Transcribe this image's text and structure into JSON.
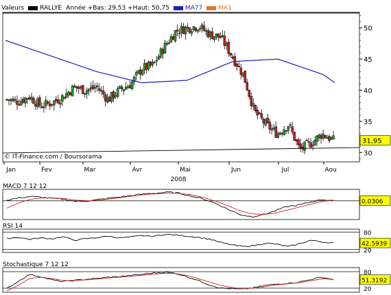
{
  "header": {
    "label_valeurs": "Valeurs",
    "label_symbol": "RALLYE",
    "label_range": "Année +Bas: 29,53 +Haut: 50,75",
    "ma77_label": "MA77",
    "ma1_label": "MA1",
    "ma77_color": "#1f1fbf",
    "ma1_color": "#e07a2a",
    "symbol_swatch_color": "#000000"
  },
  "watermark": "© IT-Finance.com / Boursorama",
  "chart_data": [
    {
      "type": "candlestick",
      "title": "",
      "xlabel": "2008",
      "x_tick_labels": [
        "Jan",
        "Fev",
        "Mar",
        "Avr",
        "Mai",
        "Jun",
        "Jul",
        "Aou"
      ],
      "y_ticks": [
        30,
        35,
        40,
        45,
        50
      ],
      "ylim": [
        28.5,
        52.5
      ],
      "last_value_label": "31,95",
      "grid": false,
      "candle_colors": {
        "up": "#2e9b2e",
        "down": "#c0202a"
      },
      "close_by_week": [
        {
          "week": "Jan-1",
          "close": 38.5
        },
        {
          "week": "Jan-2",
          "close": 38.2
        },
        {
          "week": "Jan-3",
          "close": 39.0
        },
        {
          "week": "Jan-4",
          "close": 37.5
        },
        {
          "week": "Fev-1",
          "close": 38.0
        },
        {
          "week": "Fev-2",
          "close": 39.0
        },
        {
          "week": "Fev-3",
          "close": 40.5
        },
        {
          "week": "Fev-4",
          "close": 40.0
        },
        {
          "week": "Mar-1",
          "close": 40.5
        },
        {
          "week": "Mar-2",
          "close": 38.5
        },
        {
          "week": "Mar-3",
          "close": 40.0
        },
        {
          "week": "Mar-4",
          "close": 41.0
        },
        {
          "week": "Avr-1",
          "close": 43.5
        },
        {
          "week": "Avr-2",
          "close": 44.0
        },
        {
          "week": "Avr-3",
          "close": 47.0
        },
        {
          "week": "Avr-4",
          "close": 49.5
        },
        {
          "week": "Mai-1",
          "close": 50.0
        },
        {
          "week": "Mai-2",
          "close": 50.3
        },
        {
          "week": "Mai-3",
          "close": 49.0
        },
        {
          "week": "Mai-4",
          "close": 48.5
        },
        {
          "week": "Jun-1",
          "close": 45.5
        },
        {
          "week": "Jun-2",
          "close": 42.5
        },
        {
          "week": "Jun-3",
          "close": 36.5
        },
        {
          "week": "Jun-4",
          "close": 34.5
        },
        {
          "week": "Jul-1",
          "close": 33.0
        },
        {
          "week": "Jul-2",
          "close": 34.5
        },
        {
          "week": "Jul-3",
          "close": 30.5
        },
        {
          "week": "Jul-4",
          "close": 31.5
        },
        {
          "week": "Aou-1",
          "close": 33.0
        },
        {
          "week": "Aou-2",
          "close": 31.95
        }
      ],
      "ma77": [
        {
          "week": "Jan-1",
          "value": 48.0
        },
        {
          "week": "Fev-1",
          "value": 45.5
        },
        {
          "week": "Mar-1",
          "value": 43.0
        },
        {
          "week": "Avr-1",
          "value": 41.2
        },
        {
          "week": "Mai-1",
          "value": 41.6
        },
        {
          "week": "Jun-1",
          "value": 44.6
        },
        {
          "week": "Jul-1",
          "value": 45.0
        },
        {
          "week": "Aou-1",
          "value": 42.5
        },
        {
          "week": "Aou-2",
          "value": 41.2
        }
      ],
      "ma1": [
        {
          "week": "Jul-1",
          "value": 30.6
        },
        {
          "week": "Aou-2",
          "value": 30.8
        }
      ]
    },
    {
      "type": "line",
      "title": "MACD 7 12 12",
      "last_value_label": "0,0306",
      "series": [
        {
          "color": "#000000",
          "values": [
            0.1,
            0.4,
            0.6,
            0.5,
            0.3,
            0.2,
            -0.1,
            0.0,
            0.2,
            0.4,
            0.6,
            0.8,
            1.0,
            1.1,
            1.2,
            1.0,
            0.6,
            0.2,
            -0.4,
            -1.2,
            -1.9,
            -2.2,
            -1.9,
            -1.4,
            -0.8,
            -0.6,
            -0.2,
            0.2,
            0.03
          ]
        },
        {
          "color": "#cc2222",
          "values": [
            -1.0,
            -0.3,
            0.2,
            0.4,
            0.4,
            0.3,
            0.1,
            0.0,
            0.1,
            0.3,
            0.5,
            0.7,
            0.9,
            1.0,
            1.1,
            1.0,
            0.8,
            0.4,
            -0.1,
            -0.7,
            -1.4,
            -1.8,
            -1.9,
            -1.7,
            -1.3,
            -0.9,
            -0.5,
            -0.1,
            0.1
          ]
        }
      ]
    },
    {
      "type": "line",
      "title": "RSI 14",
      "y_ticks": [
        20,
        80
      ],
      "last_value_label": "42,5939",
      "series": [
        {
          "color": "#000000",
          "values": [
            58,
            62,
            55,
            60,
            57,
            64,
            52,
            57,
            61,
            66,
            60,
            63,
            68,
            65,
            72,
            70,
            66,
            62,
            56,
            44,
            36,
            30,
            34,
            42,
            38,
            30,
            40,
            52,
            46,
            42.6
          ]
        }
      ]
    },
    {
      "type": "line",
      "title": "Stochastique 7 12 12",
      "y_ticks": [
        20,
        80
      ],
      "last_value_label": "51,3192",
      "series": [
        {
          "color": "#000000",
          "values": [
            18,
            45,
            70,
            62,
            50,
            44,
            48,
            52,
            55,
            60,
            62,
            66,
            70,
            75,
            78,
            74,
            62,
            48,
            32,
            20,
            18,
            16,
            22,
            30,
            35,
            38,
            42,
            52,
            60,
            51.3
          ]
        },
        {
          "color": "#cc2222",
          "values": [
            10,
            30,
            55,
            60,
            55,
            48,
            48,
            50,
            53,
            57,
            60,
            63,
            67,
            71,
            74,
            73,
            66,
            55,
            42,
            30,
            22,
            18,
            20,
            26,
            32,
            36,
            40,
            47,
            54,
            52
          ]
        }
      ]
    }
  ]
}
